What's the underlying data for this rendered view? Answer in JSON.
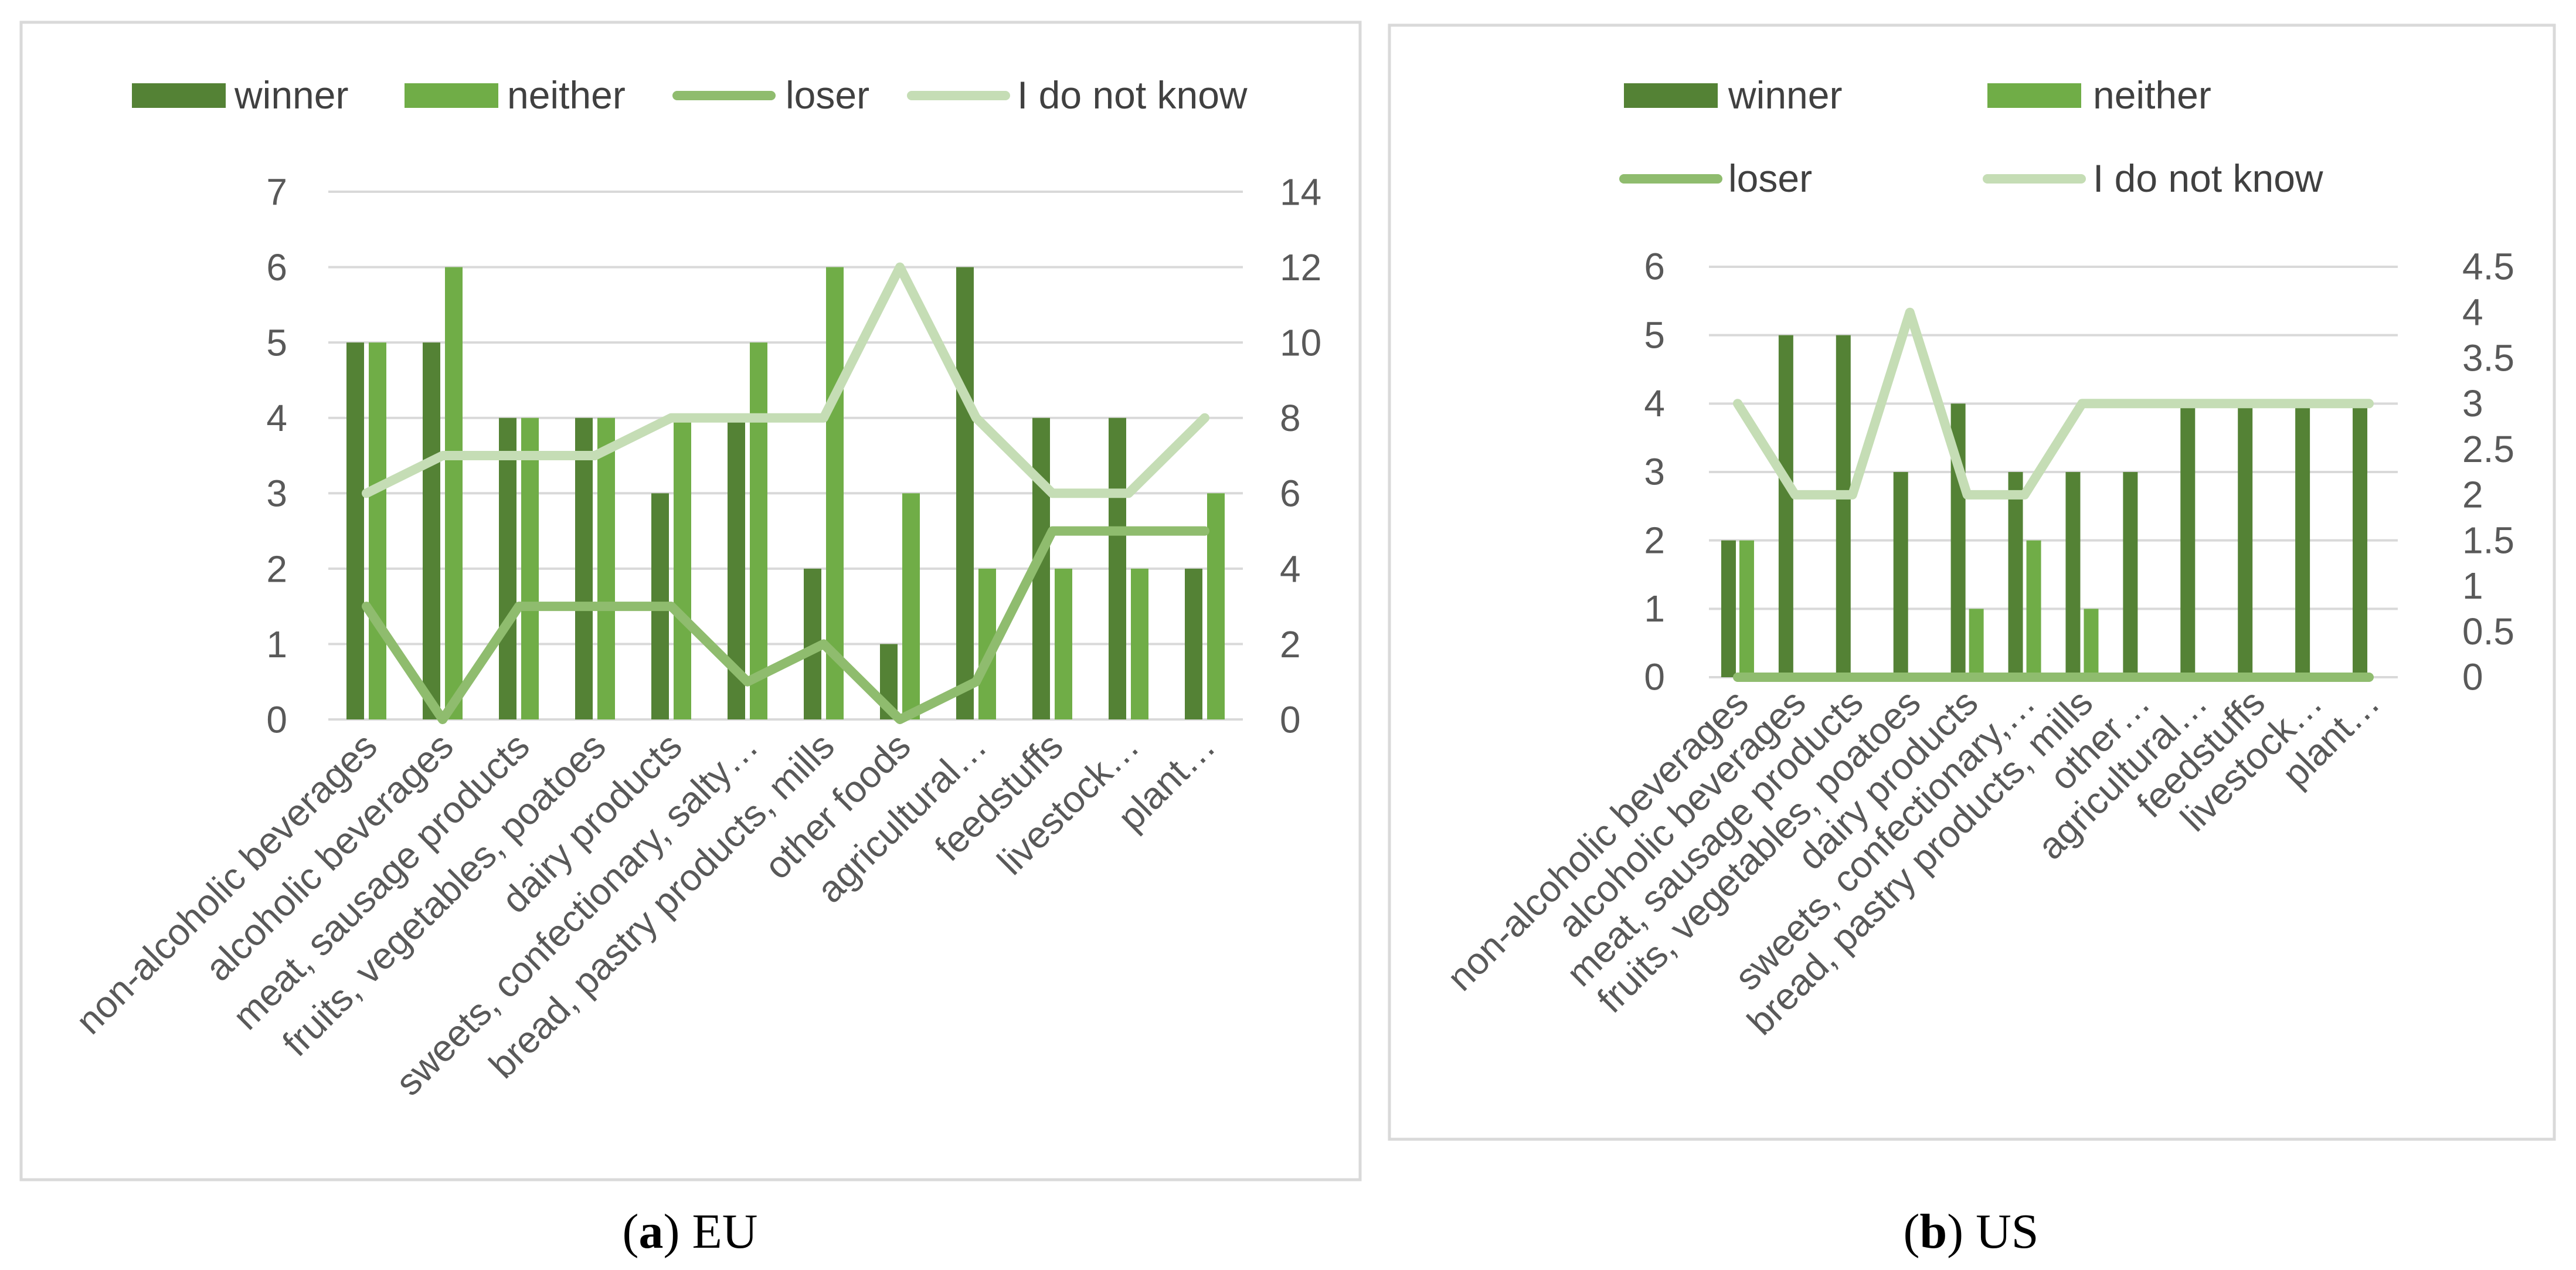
{
  "panels": [
    {
      "caption_letter": "a",
      "caption_text": " EU",
      "chart_data": {
        "type": "bar",
        "categories": [
          "non-alcoholic beverages",
          "alcoholic beverages",
          "meat, sausage products",
          "fruits, vegetables, poatoes",
          "dairy products",
          "sweets, confectionary, salty…",
          "bread, pastry products, mills",
          "other foods",
          "agricultural…",
          "feedstuffs",
          "livestock…",
          "plant…"
        ],
        "series": [
          {
            "name": "winner",
            "kind": "bar",
            "axis": "left",
            "color": "#548235",
            "values": [
              5,
              5,
              4,
              4,
              3,
              4,
              2,
              1,
              6,
              4,
              4,
              2
            ]
          },
          {
            "name": "neither",
            "kind": "bar",
            "axis": "left",
            "color": "#70AD47",
            "values": [
              5,
              6,
              4,
              4,
              4,
              5,
              6,
              3,
              2,
              2,
              2,
              3
            ]
          },
          {
            "name": "loser",
            "kind": "line",
            "axis": "right",
            "color": "#8FBC6E",
            "values": [
              3,
              0,
              3,
              3,
              3,
              1,
              2,
              0,
              1,
              5,
              5,
              5
            ]
          },
          {
            "name": "I do not know",
            "kind": "line",
            "axis": "right",
            "color": "#C5DDB5",
            "values": [
              6,
              7,
              7,
              7,
              8,
              8,
              8,
              12,
              8,
              6,
              6,
              8
            ]
          }
        ],
        "left_axis": {
          "min": 0,
          "max": 7,
          "ticks": [
            "0",
            "1",
            "2",
            "3",
            "4",
            "5",
            "6",
            "7"
          ]
        },
        "right_axis": {
          "min": 0,
          "max": 14,
          "ticks": [
            "0",
            "2",
            "4",
            "6",
            "8",
            "10",
            "12",
            "14"
          ]
        },
        "legend_position": "top",
        "grid": true
      }
    },
    {
      "caption_letter": "b",
      "caption_text": " US",
      "chart_data": {
        "type": "bar",
        "categories": [
          "non-alcoholic beverages",
          "alcoholic beverages",
          "meat, sausage products",
          "fruits, vegetables, poatoes",
          "dairy products",
          "sweets, confectionary,…",
          "bread, pastry products, mills",
          "other…",
          "agricultural…",
          "feedstuffs",
          "livestock…",
          "plant…"
        ],
        "series": [
          {
            "name": "winner",
            "kind": "bar",
            "axis": "left",
            "color": "#548235",
            "values": [
              2,
              5,
              5,
              3,
              4,
              3,
              3,
              3,
              4,
              4,
              4,
              4
            ]
          },
          {
            "name": "neither",
            "kind": "bar",
            "axis": "left",
            "color": "#70AD47",
            "values": [
              2,
              0,
              0,
              0,
              1,
              2,
              1,
              0,
              0,
              0,
              0,
              0
            ]
          },
          {
            "name": "loser",
            "kind": "line",
            "axis": "right",
            "color": "#8FBC6E",
            "values": [
              0,
              0,
              0,
              0,
              0,
              0,
              0,
              0,
              0,
              0,
              0,
              0
            ]
          },
          {
            "name": "I do not know",
            "kind": "line",
            "axis": "right",
            "color": "#C5DDB5",
            "values": [
              3,
              2,
              2,
              4,
              2,
              2,
              3,
              3,
              3,
              3,
              3,
              3
            ]
          }
        ],
        "left_axis": {
          "min": 0,
          "max": 6,
          "ticks": [
            "0",
            "1",
            "2",
            "3",
            "4",
            "5",
            "6"
          ]
        },
        "right_axis": {
          "min": 0,
          "max": 4.5,
          "ticks": [
            "0",
            "0.5",
            "1",
            "1.5",
            "2",
            "2.5",
            "3",
            "3.5",
            "4",
            "4.5"
          ]
        },
        "legend_position": "top",
        "grid": true
      }
    }
  ]
}
